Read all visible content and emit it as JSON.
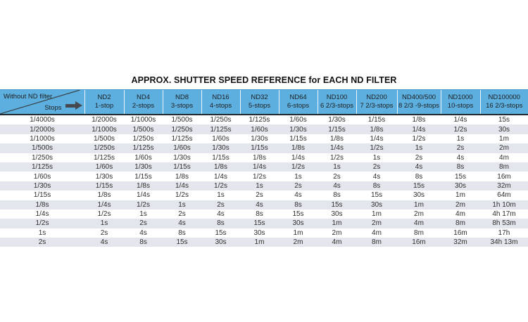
{
  "title": "APPROX. SHUTTER SPEED REFERENCE for EACH ND FILTER",
  "chart_data": {
    "type": "table",
    "title": "APPROX. SHUTTER SPEED REFERENCE for EACH ND FILTER",
    "corner": {
      "top_label": "Without ND filter",
      "bottom_label": "Stops",
      "arrow_icon": "right-arrow"
    },
    "columns": [
      {
        "nd": "ND2",
        "stops": "1-stop"
      },
      {
        "nd": "ND4",
        "stops": "2-stops"
      },
      {
        "nd": "ND8",
        "stops": "3-stops"
      },
      {
        "nd": "ND16",
        "stops": "4-stops"
      },
      {
        "nd": "ND32",
        "stops": "5-stops"
      },
      {
        "nd": "ND64",
        "stops": "6-stops"
      },
      {
        "nd": "ND100",
        "stops": "6 2/3-stops"
      },
      {
        "nd": "ND200",
        "stops": "7 2/3-stops"
      },
      {
        "nd": "ND400/500",
        "stops": "8 2/3 -9-stops"
      },
      {
        "nd": "ND1000",
        "stops": "10-stops"
      },
      {
        "nd": "ND100000",
        "stops": "16 2/3-stops"
      }
    ],
    "rows": [
      [
        "1/4000s",
        "1/2000s",
        "1/1000s",
        "1/500s",
        "1/250s",
        "1/125s",
        "1/60s",
        "1/30s",
        "1/15s",
        "1/8s",
        "1/4s",
        "15s"
      ],
      [
        "1/2000s",
        "1/1000s",
        "1/500s",
        "1/250s",
        "1/125s",
        "1/60s",
        "1/30s",
        "1/15s",
        "1/8s",
        "1/4s",
        "1/2s",
        "30s"
      ],
      [
        "1/1000s",
        "1/500s",
        "1/250s",
        "1/125s",
        "1/60s",
        "1/30s",
        "1/15s",
        "1/8s",
        "1/4s",
        "1/2s",
        "1s",
        "1m"
      ],
      [
        "1/500s",
        "1/250s",
        "1/125s",
        "1/60s",
        "1/30s",
        "1/15s",
        "1/8s",
        "1/4s",
        "1/2s",
        "1s",
        "2s",
        "2m"
      ],
      [
        "1/250s",
        "1/125s",
        "1/60s",
        "1/30s",
        "1/15s",
        "1/8s",
        "1/4s",
        "1/2s",
        "1s",
        "2s",
        "4s",
        "4m"
      ],
      [
        "1/125s",
        "1/60s",
        "1/30s",
        "1/15s",
        "1/8s",
        "1/4s",
        "1/2s",
        "1s",
        "2s",
        "4s",
        "8s",
        "8m"
      ],
      [
        "1/60s",
        "1/30s",
        "1/15s",
        "1/8s",
        "1/4s",
        "1/2s",
        "1s",
        "2s",
        "4s",
        "8s",
        "15s",
        "16m"
      ],
      [
        "1/30s",
        "1/15s",
        "1/8s",
        "1/4s",
        "1/2s",
        "1s",
        "2s",
        "4s",
        "8s",
        "15s",
        "30s",
        "32m"
      ],
      [
        "1/15s",
        "1/8s",
        "1/4s",
        "1/2s",
        "1s",
        "2s",
        "4s",
        "8s",
        "15s",
        "30s",
        "1m",
        "64m"
      ],
      [
        "1/8s",
        "1/4s",
        "1/2s",
        "1s",
        "2s",
        "4s",
        "8s",
        "15s",
        "30s",
        "1m",
        "2m",
        "1h 10m"
      ],
      [
        "1/4s",
        "1/2s",
        "1s",
        "2s",
        "4s",
        "8s",
        "15s",
        "30s",
        "1m",
        "2m",
        "4m",
        "4h 17m"
      ],
      [
        "1/2s",
        "1s",
        "2s",
        "4s",
        "8s",
        "15s",
        "30s",
        "1m",
        "2m",
        "4m",
        "8m",
        "8h 53m"
      ],
      [
        "1s",
        "2s",
        "4s",
        "8s",
        "15s",
        "30s",
        "1m",
        "2m",
        "4m",
        "8m",
        "16m",
        "17h"
      ],
      [
        "2s",
        "4s",
        "8s",
        "15s",
        "30s",
        "1m",
        "2m",
        "4m",
        "8m",
        "16m",
        "32m",
        "34h 13m"
      ]
    ]
  },
  "colors": {
    "header_bg": "#5dafe0",
    "header_rule": "#23282f",
    "row_alt": "#e3e6ec",
    "arrow": "#45494f"
  }
}
